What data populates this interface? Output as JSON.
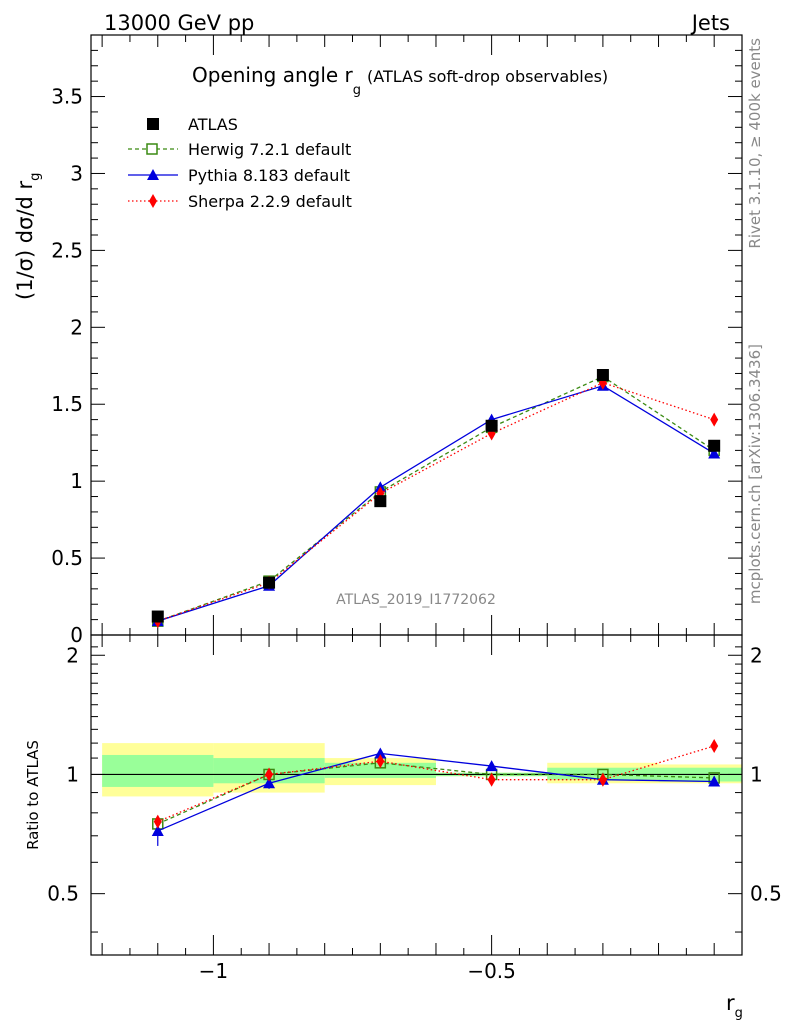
{
  "header": {
    "left": "13000 GeV pp",
    "right": "Jets"
  },
  "side_labels": {
    "rivet": "Rivet 3.1.10, ≥ 400k events",
    "mcplots": "mcplots.cern.ch [arXiv:1306.3436]"
  },
  "colors": {
    "herwig": "#3a8a12",
    "pythia": "#0000dd",
    "sherpa": "#ff0000",
    "atlas": "#000000",
    "band_inner": "#99ff99",
    "band_outer": "#ffff99"
  },
  "chart_data": [
    {
      "type": "scatter",
      "id": "main",
      "title_main": "Opening angle r",
      "title_sub": "g",
      "title_extra": "(ATLAS soft-drop observables)",
      "ylabel": "(1/σ) dσ/d r",
      "ylabel_sub": "g",
      "watermark": "ATLAS_2019_I1772062",
      "ylim": [
        0,
        3.9
      ],
      "yticks": [
        0,
        0.5,
        1,
        1.5,
        2,
        2.5,
        3,
        3.5
      ],
      "ytick_labels": [
        "0",
        "0.5",
        "1",
        "1.5",
        "2",
        "2.5",
        "3",
        "3.5"
      ],
      "x": [
        -1.1,
        -0.9,
        -0.7,
        -0.5,
        -0.3,
        -0.1
      ],
      "bin_edges": [
        -1.2,
        -1.0,
        -0.8,
        -0.6,
        -0.4,
        -0.2,
        -0.05
      ],
      "series": [
        {
          "name": "ATLAS",
          "values": [
            0.12,
            0.34,
            0.87,
            1.36,
            1.69,
            1.23
          ],
          "errors": [
            0.01,
            0.01,
            0.02,
            0.03,
            0.03,
            0.03
          ]
        },
        {
          "name": "Herwig 7.2.1 default",
          "values": [
            0.09,
            0.35,
            0.93,
            1.35,
            1.68,
            1.2
          ],
          "errors": [
            0.0,
            0.0,
            0.0,
            0.0,
            0.0,
            0.0
          ]
        },
        {
          "name": "Pythia 8.183 default",
          "values": [
            0.09,
            0.32,
            0.96,
            1.4,
            1.62,
            1.18
          ],
          "errors": [
            0.01,
            0.01,
            0.01,
            0.02,
            0.02,
            0.02
          ]
        },
        {
          "name": "Sherpa 2.2.9 default",
          "values": [
            0.09,
            0.34,
            0.92,
            1.31,
            1.64,
            1.4
          ],
          "errors": [
            0.0,
            0.0,
            0.0,
            0.0,
            0.0,
            0.0
          ]
        }
      ]
    },
    {
      "type": "scatter",
      "id": "ratio",
      "ylabel": "Ratio to ATLAS",
      "xlabel": "r",
      "xlabel_sub": "g",
      "xlim": [
        -1.22,
        -0.05
      ],
      "xticks": [
        -1,
        -0.5
      ],
      "xtick_labels": [
        "−1",
        "−0.5"
      ],
      "ylim": [
        0.35,
        2.25
      ],
      "yticks": [
        0.5,
        1,
        2
      ],
      "ytick_labels": [
        "0.5",
        "1",
        "2"
      ],
      "x": [
        -1.1,
        -0.9,
        -0.7,
        -0.5,
        -0.3,
        -0.1
      ],
      "band_inner": [
        [
          0.93,
          1.12
        ],
        [
          0.95,
          1.1
        ],
        [
          0.98,
          1.07
        ],
        [
          0.99,
          1.01
        ],
        [
          0.97,
          1.04
        ],
        [
          0.96,
          1.04
        ]
      ],
      "band_outer": [
        [
          0.88,
          1.2
        ],
        [
          0.9,
          1.2
        ],
        [
          0.94,
          1.1
        ],
        [
          0.99,
          1.01
        ],
        [
          0.95,
          1.07
        ],
        [
          0.95,
          1.06
        ]
      ],
      "series": [
        {
          "name": "Herwig 7.2.1 default",
          "values": [
            0.75,
            1.0,
            1.07,
            1.0,
            1.0,
            0.98
          ],
          "errors": [
            0.02,
            0.02,
            0.02,
            0.01,
            0.01,
            0.01
          ]
        },
        {
          "name": "Pythia 8.183 default",
          "values": [
            0.72,
            0.95,
            1.13,
            1.05,
            0.97,
            0.96
          ],
          "errors": [
            0.06,
            0.03,
            0.02,
            0.01,
            0.01,
            0.01
          ]
        },
        {
          "name": "Sherpa 2.2.9 default",
          "values": [
            0.76,
            1.0,
            1.08,
            0.97,
            0.97,
            1.18
          ],
          "errors": [
            0.01,
            0.01,
            0.01,
            0.01,
            0.01,
            0.01
          ]
        }
      ]
    }
  ]
}
